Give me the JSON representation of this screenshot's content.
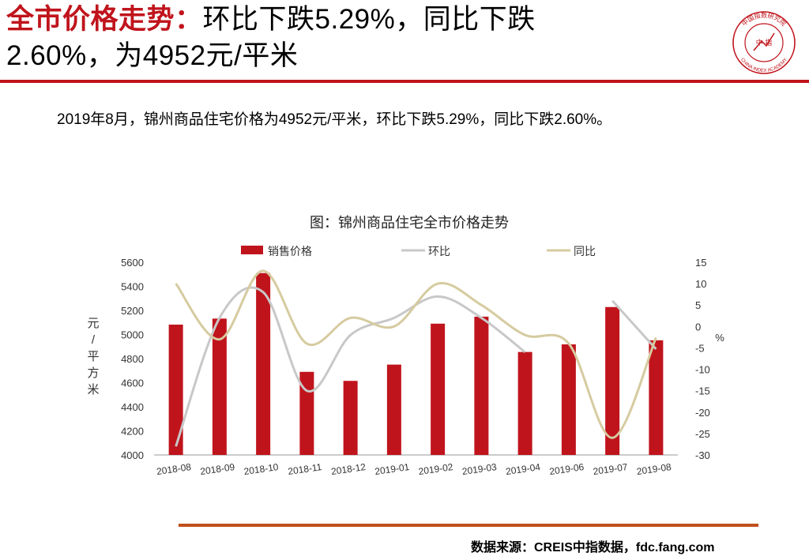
{
  "header": {
    "title_accent": "全市价格走势：",
    "title_line1_rest": "环比下跌5.29%，同比下跌",
    "title_line2": "2.60%，为4952元/平米",
    "logo_top_text": "中国指数研究院",
    "logo_center_text": "中 指",
    "logo_bottom_text": "CHINA INDEX ACADEMY"
  },
  "summary": "2019年8月，锦州商品住宅价格为4952元/平米，环比下跌5.29%，同比下跌2.60%。",
  "source": "数据来源：CREIS中指数据，fdc.fang.com",
  "colors": {
    "accent": "#c0141c",
    "bar": "#c0141c",
    "mom": "#c8c8c8",
    "yoy": "#d6cba0",
    "rule_bottom": "#c0501c"
  },
  "chart_data": {
    "type": "bar",
    "title": "图：锦州商品住宅全市价格走势",
    "categories": [
      "2018-08",
      "2018-09",
      "2018-10",
      "2018-11",
      "2018-12",
      "2019-01",
      "2019-02",
      "2019-03",
      "2019-04",
      "2019-06",
      "2019-07",
      "2019-08"
    ],
    "series": [
      {
        "name": "销售价格",
        "type": "bar",
        "axis": "left",
        "values": [
          5082,
          5132,
          5510,
          4690,
          4615,
          4750,
          5090,
          5148,
          4855,
          4918,
          5228,
          4952
        ]
      },
      {
        "name": "环比",
        "type": "line",
        "axis": "right",
        "values": [
          -28,
          2,
          8,
          -15,
          -2,
          2,
          7,
          2,
          -6,
          null,
          6,
          -5.29
        ]
      },
      {
        "name": "同比",
        "type": "line",
        "axis": "right",
        "values": [
          10,
          -3,
          13,
          -4,
          2,
          0,
          10,
          5,
          -2,
          -4,
          -26,
          -2.6
        ]
      }
    ],
    "ylabel": "元/平方米",
    "ylabel_right": "%",
    "ylim": [
      4000,
      5600
    ],
    "yticks": [
      4000,
      4200,
      4400,
      4600,
      4800,
      5000,
      5200,
      5400,
      5600
    ],
    "ylim_right": [
      -30,
      15
    ],
    "yticks_right": [
      -30,
      -25,
      -20,
      -15,
      -10,
      -5,
      0,
      5,
      10,
      15
    ],
    "legend": "top",
    "grid": false
  }
}
